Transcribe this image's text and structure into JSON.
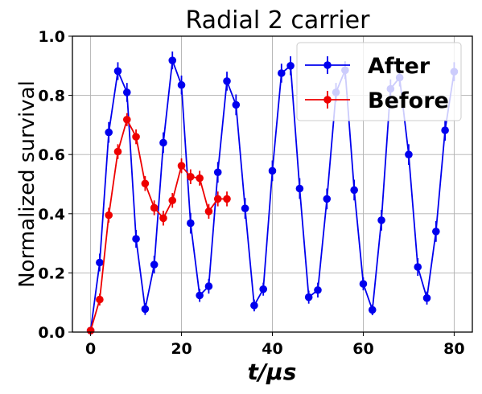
{
  "chart_data": {
    "type": "line",
    "title": "Radial 2 carrier",
    "xlabel": "t/μs",
    "ylabel": "Normalized survival",
    "xlim": [
      -4,
      84
    ],
    "ylim": [
      0.0,
      1.0
    ],
    "xticks": [
      0,
      20,
      40,
      60,
      80
    ],
    "yticks": [
      0.0,
      0.2,
      0.4,
      0.6,
      0.8,
      1.0
    ],
    "xtick_labels": [
      "0",
      "20",
      "40",
      "60",
      "80"
    ],
    "ytick_labels": [
      "0.0",
      "0.2",
      "0.4",
      "0.6",
      "0.8",
      "1.0"
    ],
    "grid": true,
    "legend_position": "top-right",
    "series": [
      {
        "name": "After",
        "color": "#0000ee",
        "x": [
          0,
          2,
          4,
          6,
          8,
          10,
          12,
          14,
          16,
          18,
          20,
          22,
          24,
          26,
          28,
          30,
          32,
          34,
          36,
          38,
          40,
          42,
          44,
          46,
          48,
          50,
          52,
          54,
          56,
          58,
          60,
          62,
          64,
          66,
          68,
          70,
          72,
          74,
          76,
          78,
          80
        ],
        "y": [
          0.005,
          0.235,
          0.675,
          0.882,
          0.81,
          0.315,
          0.078,
          0.228,
          0.64,
          0.918,
          0.835,
          0.368,
          0.124,
          0.155,
          0.54,
          0.848,
          0.768,
          0.418,
          0.09,
          0.145,
          0.545,
          0.875,
          0.9,
          0.485,
          0.118,
          0.142,
          0.45,
          0.81,
          0.885,
          0.48,
          0.163,
          0.075,
          0.378,
          0.822,
          0.86,
          0.6,
          0.22,
          0.115,
          0.34,
          0.682,
          0.88
        ],
        "err": [
          0.012,
          0.03,
          0.035,
          0.03,
          0.032,
          0.03,
          0.02,
          0.03,
          0.035,
          0.03,
          0.032,
          0.035,
          0.022,
          0.025,
          0.035,
          0.032,
          0.035,
          0.035,
          0.02,
          0.022,
          0.035,
          0.032,
          0.032,
          0.035,
          0.022,
          0.025,
          0.035,
          0.032,
          0.03,
          0.035,
          0.022,
          0.018,
          0.035,
          0.032,
          0.03,
          0.035,
          0.03,
          0.022,
          0.035,
          0.035,
          0.032
        ]
      },
      {
        "name": "Before",
        "color": "#ee0000",
        "x": [
          0,
          2,
          4,
          6,
          8,
          10,
          12,
          14,
          16,
          18,
          20,
          22,
          24,
          26,
          28,
          30
        ],
        "y": [
          0.005,
          0.11,
          0.395,
          0.61,
          0.718,
          0.66,
          0.502,
          0.42,
          0.385,
          0.445,
          0.562,
          0.525,
          0.52,
          0.408,
          0.45,
          0.45
        ],
        "err": [
          0.01,
          0.02,
          0.025,
          0.025,
          0.022,
          0.025,
          0.025,
          0.025,
          0.025,
          0.025,
          0.025,
          0.025,
          0.025,
          0.025,
          0.025,
          0.025
        ]
      }
    ]
  }
}
